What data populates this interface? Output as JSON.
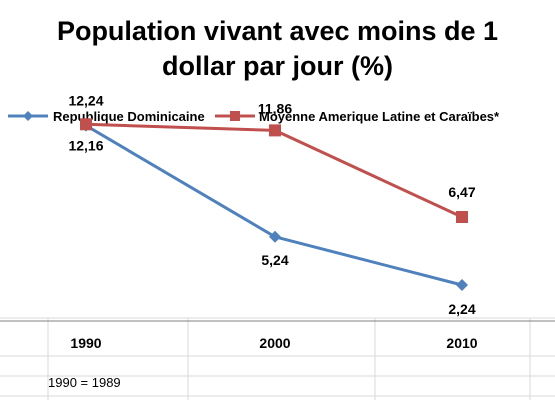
{
  "chart_data": {
    "type": "line",
    "title_lines": [
      "Population vivant avec moins de 1",
      "dollar par jour (%)"
    ],
    "categories": [
      "1990",
      "2000",
      "2010"
    ],
    "series": [
      {
        "name": "Republique Dominicaine",
        "color": "#4f81bd",
        "marker": "diamond",
        "values": [
          12.16,
          5.24,
          2.24
        ],
        "labels": [
          "12,16",
          "5,24",
          "2,24"
        ]
      },
      {
        "name": "Moyenne Amerique Latine et Caraïbes*",
        "color": "#c0504d",
        "marker": "square",
        "values": [
          12.24,
          11.86,
          6.47
        ],
        "labels": [
          "12,24",
          "11,86",
          "6,47"
        ]
      }
    ],
    "ylim": [
      0,
      14
    ],
    "grid": false,
    "legend_position": "top"
  },
  "footnote": "1990 = 1989"
}
